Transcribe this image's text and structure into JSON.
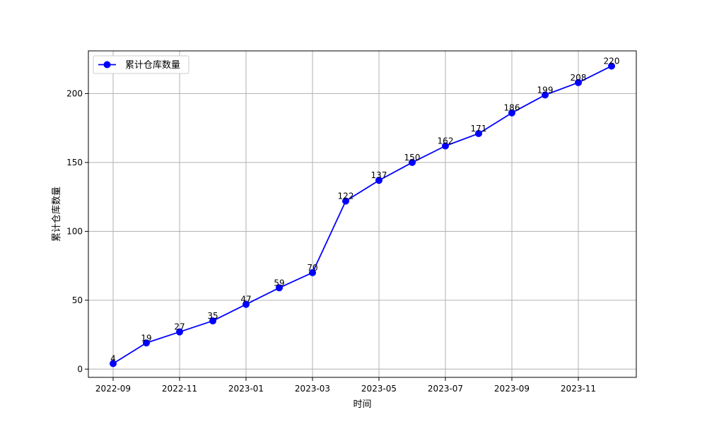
{
  "chart_data": {
    "type": "line",
    "title": "",
    "xlabel": "时间",
    "ylabel": "累计仓库数量",
    "x": [
      "2022-09",
      "2022-10",
      "2022-11",
      "2022-12",
      "2023-01",
      "2023-02",
      "2023-03",
      "2023-04",
      "2023-05",
      "2023-06",
      "2023-07",
      "2023-08",
      "2023-09",
      "2023-10",
      "2023-11",
      "2023-12"
    ],
    "x_tick_labels": [
      "2022-09",
      "2022-11",
      "2023-01",
      "2023-03",
      "2023-05",
      "2023-07",
      "2023-09",
      "2023-11"
    ],
    "y_ticks": [
      0,
      50,
      100,
      150,
      200
    ],
    "ylim": [
      -6,
      231
    ],
    "grid": true,
    "legend_position": "upper-left",
    "series": [
      {
        "name": "累计仓库数量",
        "color": "#0000ff",
        "marker": "circle",
        "values": [
          4,
          19,
          27,
          35,
          47,
          59,
          70,
          122,
          137,
          150,
          162,
          171,
          186,
          199,
          208,
          220
        ]
      }
    ]
  }
}
